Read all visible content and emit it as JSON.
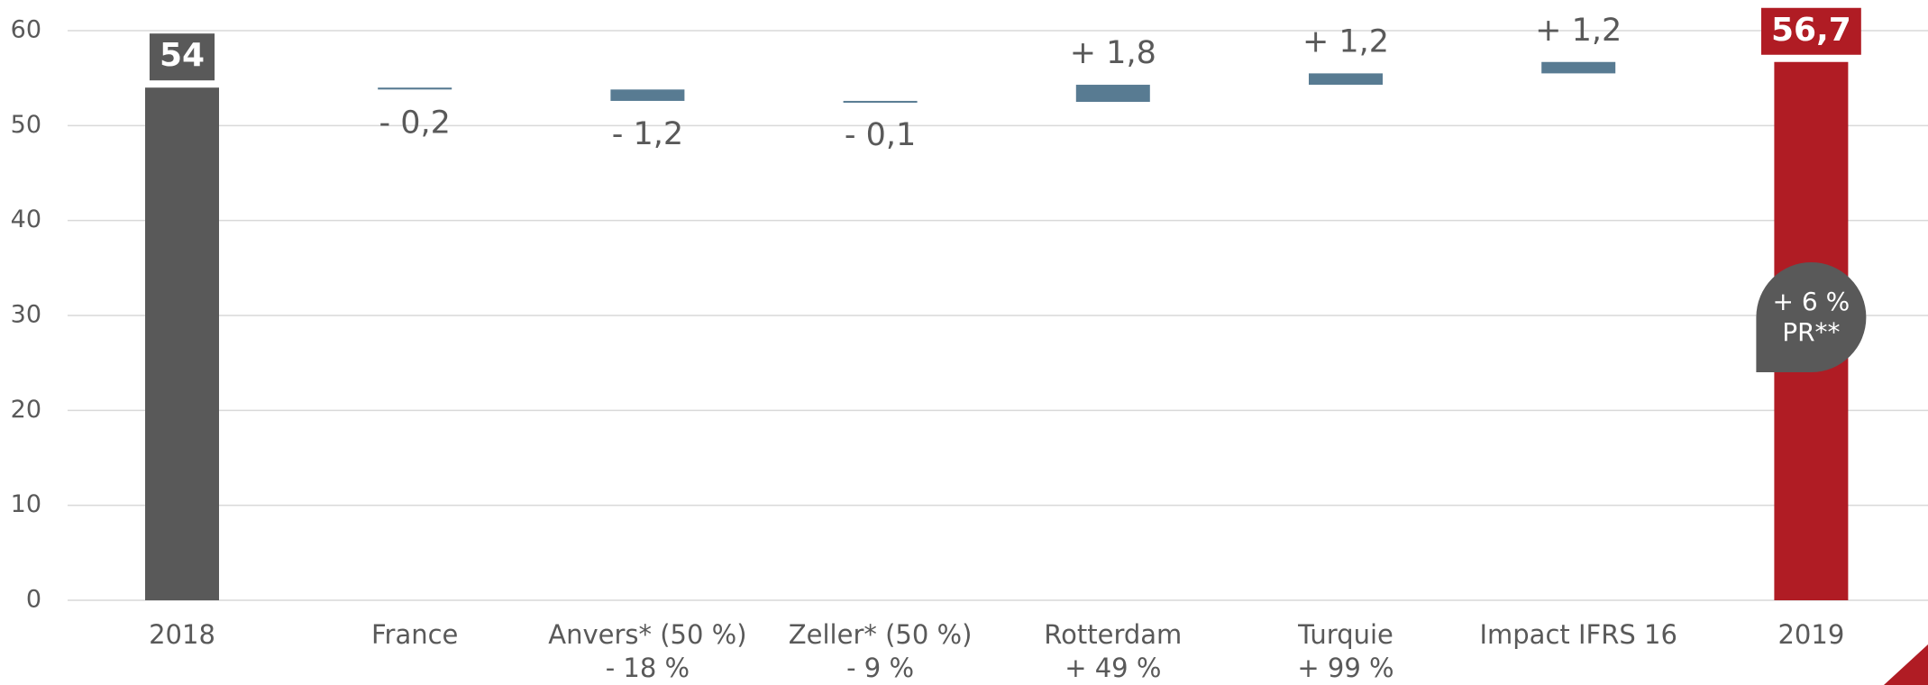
{
  "chart_data": {
    "type": "waterfall",
    "categories": [
      "2018",
      "France",
      "Anvers* (50 %)",
      "Zeller* (50 %)",
      "Rotterdam",
      "Turquie",
      "Impact IFRS 16",
      "2019"
    ],
    "sublabels": [
      null,
      null,
      "- 18 %",
      "- 9 %",
      "+ 49 %",
      "+ 99 %",
      null,
      null
    ],
    "values": [
      54,
      -0.2,
      -1.2,
      -0.1,
      1.8,
      1.2,
      1.2,
      56.7
    ],
    "value_labels": [
      "54",
      "- 0,2",
      "- 1,2",
      "- 0,1",
      "+ 1,8",
      "+ 1,2",
      "+ 1,2",
      "56,7"
    ],
    "is_total": [
      true,
      false,
      false,
      false,
      false,
      false,
      false,
      true
    ],
    "colors": [
      "#595959",
      "#587b92",
      "#587b92",
      "#587b92",
      "#587b92",
      "#587b92",
      "#587b92",
      "#b01c24"
    ],
    "annotation": [
      "+ 6 %",
      "PR**"
    ],
    "ylim": [
      0,
      60
    ],
    "yticks": [
      0,
      10,
      20,
      30,
      40,
      50,
      60
    ],
    "grid": true
  }
}
